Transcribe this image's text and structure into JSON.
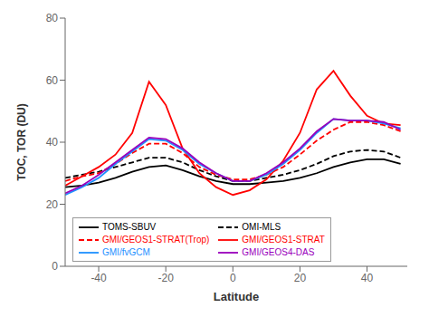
{
  "chart_data": {
    "type": "line",
    "xlabel": "Latitude",
    "ylabel": "TOC, TOR (DU)",
    "x": [
      -50,
      -45,
      -40,
      -35,
      -30,
      -25,
      -20,
      -15,
      -10,
      -5,
      0,
      5,
      10,
      15,
      20,
      25,
      30,
      35,
      40,
      45,
      50
    ],
    "series": [
      {
        "name": "TOMS-SBUV",
        "color": "#000000",
        "line_style": "solid",
        "values": [
          25.5,
          26.0,
          27.0,
          28.5,
          30.5,
          32.0,
          32.5,
          31.0,
          29.0,
          27.5,
          26.5,
          26.5,
          27.0,
          27.5,
          28.5,
          30.0,
          32.0,
          33.5,
          34.5,
          34.5,
          33.0
        ]
      },
      {
        "name": "OMI-MLS",
        "color": "#000000",
        "line_style": "dashed",
        "values": [
          28.5,
          29.5,
          30.5,
          32.0,
          33.5,
          35.0,
          35.0,
          33.5,
          31.0,
          29.0,
          27.5,
          27.5,
          28.5,
          29.5,
          31.0,
          33.0,
          35.5,
          37.0,
          37.5,
          37.0,
          35.0
        ]
      },
      {
        "name": "GMI/GEOS1-STRAT(Trop)",
        "color": "#ff0000",
        "line_style": "dashed",
        "values": [
          27.5,
          29.0,
          30.0,
          33.0,
          36.5,
          39.5,
          39.5,
          36.5,
          32.0,
          29.5,
          28.0,
          28.0,
          29.5,
          32.0,
          36.0,
          40.5,
          44.0,
          46.5,
          46.5,
          45.5,
          43.5
        ]
      },
      {
        "name": "GMI/GEOS1-STRAT",
        "color": "#ff0000",
        "line_style": "solid",
        "values": [
          26.0,
          29.0,
          32.0,
          36.0,
          43.0,
          59.5,
          52.0,
          38.0,
          30.0,
          25.5,
          23.0,
          24.5,
          28.0,
          34.0,
          43.0,
          57.0,
          63.0,
          55.0,
          48.5,
          46.0,
          45.5
        ]
      },
      {
        "name": "GMI/fvGCM",
        "color": "#1e90ff",
        "line_style": "solid",
        "values": [
          23.0,
          25.5,
          28.5,
          33.0,
          37.0,
          41.0,
          40.5,
          37.5,
          33.0,
          30.0,
          27.5,
          27.5,
          29.5,
          33.0,
          37.5,
          43.0,
          47.5,
          47.0,
          47.0,
          46.0,
          44.5
        ]
      },
      {
        "name": "GMI/GEOS4-DAS",
        "color": "#9900bb",
        "line_style": "solid",
        "values": [
          23.5,
          26.0,
          29.5,
          33.5,
          37.5,
          41.5,
          41.0,
          38.0,
          33.5,
          30.0,
          27.5,
          27.5,
          30.0,
          33.5,
          38.0,
          43.5,
          47.5,
          47.0,
          47.0,
          46.5,
          44.0
        ]
      }
    ],
    "xlim": [
      -50,
      52
    ],
    "ylim": [
      0,
      80
    ],
    "xticks": [
      -40,
      -20,
      0,
      20,
      40
    ],
    "yticks": [
      0,
      20,
      40,
      60,
      80
    ],
    "grid": false,
    "legend": "lower left"
  }
}
